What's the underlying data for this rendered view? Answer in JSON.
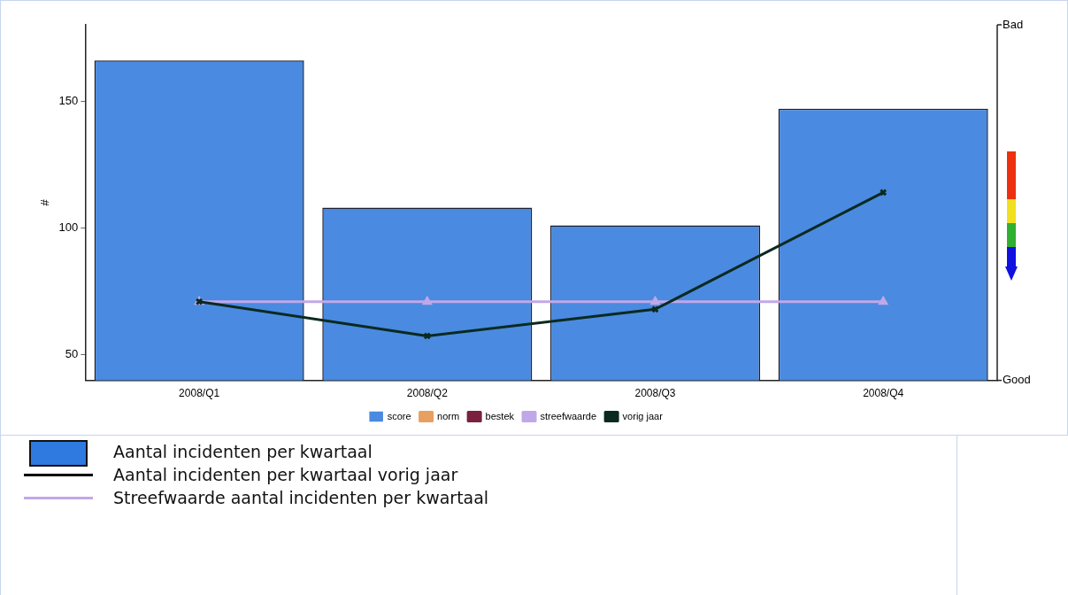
{
  "chart_data": {
    "type": "bar",
    "ylabel": "#",
    "categories": [
      "2008/Q1",
      "2008/Q2",
      "2008/Q3",
      "2008/Q4"
    ],
    "series": [
      {
        "name": "score",
        "color": "#4a8ae0",
        "values": [
          166,
          108,
          101,
          147
        ]
      },
      {
        "name": "norm",
        "type": "line",
        "color": "#e8a060",
        "marker": "square",
        "values": [
          null,
          null,
          null,
          null
        ]
      },
      {
        "name": "bestek",
        "type": "line",
        "color": "#7a2040",
        "marker": "cross",
        "values": [
          null,
          null,
          null,
          null
        ]
      },
      {
        "name": "streefwaarde",
        "type": "line",
        "color": "#c0a8e8",
        "marker": "triangle",
        "values": [
          71,
          71,
          71,
          71
        ]
      },
      {
        "name": "vorig jaar",
        "type": "line",
        "color": "#0a2a20",
        "marker": "cross",
        "values": [
          71,
          57.5,
          68,
          114
        ]
      }
    ],
    "ylim": [
      40,
      180
    ],
    "yticks": [
      50,
      100,
      150
    ],
    "legend": "bottom",
    "grid": false,
    "annotations": [
      "Bad",
      "Good",
      "Aantal incidenten per kwartaal",
      "Aantal incidenten per kwartaal vorig jaar",
      "Streefwaarde aantal incidenten per kwartaal"
    ]
  }
}
